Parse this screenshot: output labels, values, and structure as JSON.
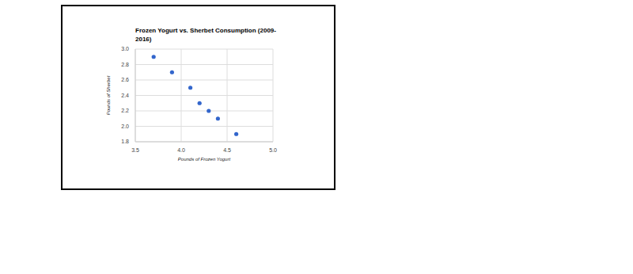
{
  "chart_data": {
    "type": "scatter",
    "title": "Frozen Yogurt vs. Sherbet Consumption (2009-2016)",
    "x_label": "Pounds of Frozen Yogurt",
    "y_label": "Pounds of Sherbet",
    "x": [
      3.7,
      3.9,
      4.1,
      4.2,
      4.3,
      4.4,
      4.6
    ],
    "values": [
      2.9,
      2.7,
      2.5,
      2.3,
      2.2,
      2.1,
      1.9
    ],
    "color": "#3366cc",
    "xlim": [
      3.5,
      5.0
    ],
    "xticks": [
      3.5,
      {
        "value": 4.0,
        "label": "4.0"
      },
      4.5,
      {
        "value": 5.0,
        "label": "5.0"
      }
    ],
    "ylim": [
      1.8,
      3.0
    ],
    "yticks": [
      1.8,
      {
        "value": 2.0,
        "label": "2.0"
      },
      2.2,
      2.4,
      2.6,
      2.8,
      {
        "value": 3.0,
        "label": "3.0"
      }
    ],
    "grid": true,
    "marker": "circle"
  }
}
